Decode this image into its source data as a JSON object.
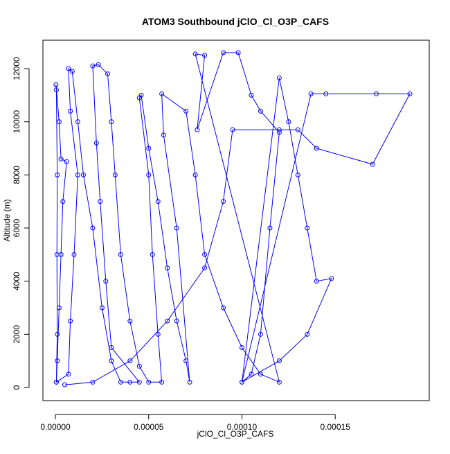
{
  "chart_data": {
    "type": "line",
    "title": "ATOM3 Southbound jClO_Cl_O3P_CAFS",
    "x_label": "jClO_Cl_O3P_CAFS",
    "y_label": "Altitude (m)",
    "color": "#0000ff",
    "x": [
      5e-07,
      1e-06,
      8e-07,
      1e-06,
      5e-07,
      3e-07,
      2e-06,
      3e-06,
      6e-06,
      4e-06,
      3e-06,
      2e-06,
      1e-06,
      5e-07,
      7e-06,
      8e-06,
      1e-05,
      1.2e-05,
      8e-06,
      7e-06,
      9e-06,
      1.2e-05,
      1.5e-05,
      2e-05,
      2.5e-05,
      3e-05,
      3.5e-05,
      4e-05,
      4.5e-05,
      3e-05,
      2.7e-05,
      2.4e-05,
      2.2e-05,
      2e-05,
      2.3e-05,
      2.8e-05,
      3e-05,
      3.2e-05,
      3.5e-05,
      4e-05,
      4.5e-05,
      5e-05,
      5.7e-05,
      5.5e-05,
      5.2e-05,
      5e-05,
      4.5e-05,
      4.6e-05,
      5e-05,
      5.5e-05,
      6e-05,
      6.5e-05,
      7e-05,
      7.2e-05,
      6.5e-05,
      5.8e-05,
      5.7e-05,
      7e-05,
      7.5e-05,
      8e-05,
      9e-05,
      0.0001,
      0.00011,
      0.00012,
      7.5e-05,
      8e-05,
      7.6e-05,
      9e-05,
      9.8e-05,
      0.000105,
      0.00011,
      0.00012,
      0.000115,
      0.00011,
      0.000105,
      0.0001,
      0.00012,
      0.000125,
      0.00013,
      0.000135,
      0.00014,
      0.000148,
      0.000135,
      0.00012,
      0.0001,
      0.000137,
      0.000145,
      0.000172,
      0.00019,
      0.00017,
      0.00014,
      0.00013,
      0.00012,
      9.5e-05,
      9e-05,
      8e-05,
      6e-05,
      4e-05,
      2e-05,
      5e-06
    ],
    "values": [
      200,
      2000,
      5000,
      8000,
      11200,
      11400,
      10000,
      8600,
      8500,
      7000,
      5000,
      3000,
      1000,
      200,
      500,
      2500,
      5000,
      8000,
      10400,
      12000,
      11900,
      10000,
      8000,
      6000,
      3000,
      1000,
      200,
      200,
      200,
      1500,
      4000,
      7000,
      9200,
      12100,
      12150,
      11800,
      10000,
      8000,
      5000,
      2500,
      800,
      200,
      200,
      2000,
      5000,
      8000,
      10900,
      11000,
      9000,
      7000,
      4500,
      2500,
      1000,
      200,
      6000,
      9500,
      11050,
      10400,
      8000,
      5000,
      3000,
      1500,
      500,
      200,
      12550,
      12500,
      9700,
      12600,
      12600,
      11000,
      10400,
      9600,
      6000,
      2000,
      500,
      200,
      11650,
      10000,
      8000,
      6000,
      4000,
      4100,
      2000,
      1000,
      200,
      11050,
      11050,
      11050,
      11050,
      8400,
      9000,
      9700,
      9700,
      9700,
      7000,
      4500,
      2500,
      1000,
      200,
      100
    ],
    "xlim": [
      -6.7e-06,
      0.0002004
    ],
    "ylim": [
      -496,
      13070
    ],
    "xticks": [
      {
        "value": 0,
        "label": "0.00000"
      },
      {
        "value": 5e-05,
        "label": "0.00005"
      },
      {
        "value": 0.0001,
        "label": "0.00010"
      },
      {
        "value": 0.00015,
        "label": "0.00015"
      }
    ],
    "yticks": [
      0,
      2000,
      4000,
      6000,
      8000,
      10000,
      12000
    ]
  }
}
